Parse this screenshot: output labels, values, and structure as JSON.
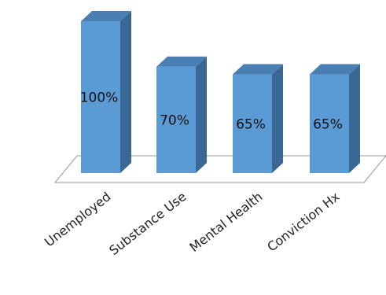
{
  "chart_data": {
    "type": "bar",
    "three_d": true,
    "categories": [
      "Unemployed",
      "Substance Use",
      "Mental Health",
      "Conviction Hx"
    ],
    "values": [
      100,
      70,
      65,
      65
    ],
    "data_labels": [
      "100%",
      "70%",
      "65%",
      "65%"
    ],
    "ylim": [
      0,
      100
    ],
    "grid": false,
    "legend": "none",
    "colors": {
      "front": "#5B9BD5",
      "side": "#3A6894",
      "top": "#4A7FB3",
      "floor_stroke": "#9A9A9A"
    }
  }
}
